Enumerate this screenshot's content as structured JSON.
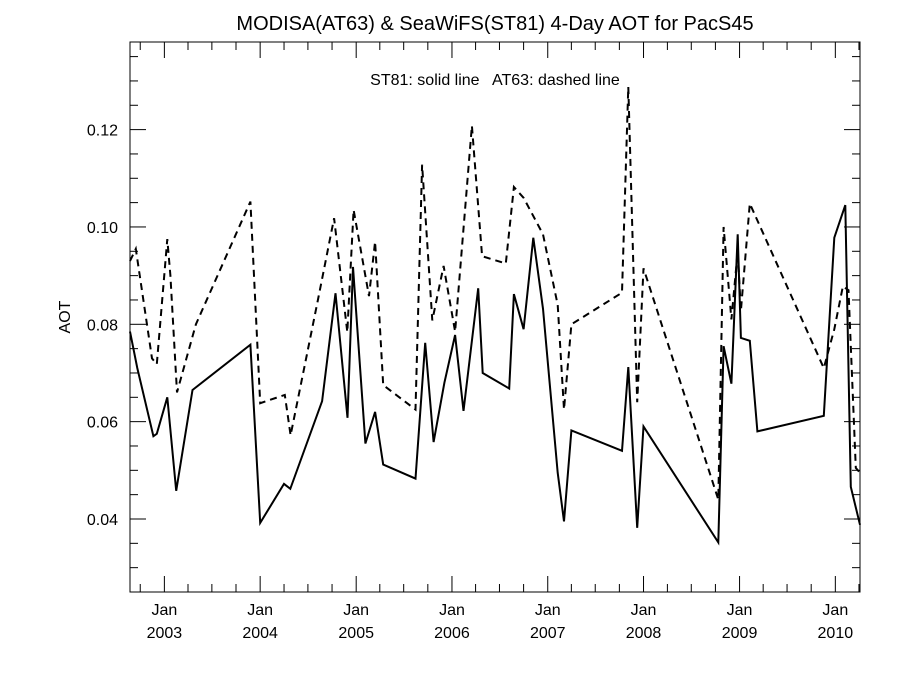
{
  "chart_data": {
    "type": "line",
    "title": "MODISA(AT63) & SeaWiFS(ST81) 4-Day AOT for PacS45",
    "ylabel": "AOT",
    "xlabel": "",
    "annotation": "ST81: solid line   AT63: dashed line",
    "xlim": [
      "2002-08-23",
      "2010-04-05"
    ],
    "ylim": [
      0.025,
      0.138
    ],
    "y_ticks": [
      0.04,
      0.06,
      0.08,
      0.1,
      0.12
    ],
    "y_tick_labels": [
      "0.04",
      "0.06",
      "0.08",
      "0.10",
      "0.12"
    ],
    "x_ticks": [
      {
        "date": "2003-01-01",
        "month": "Jan",
        "year": "2003"
      },
      {
        "date": "2004-01-01",
        "month": "Jan",
        "year": "2004"
      },
      {
        "date": "2005-01-01",
        "month": "Jan",
        "year": "2005"
      },
      {
        "date": "2006-01-01",
        "month": "Jan",
        "year": "2006"
      },
      {
        "date": "2007-01-01",
        "month": "Jan",
        "year": "2007"
      },
      {
        "date": "2008-01-01",
        "month": "Jan",
        "year": "2008"
      },
      {
        "date": "2009-01-01",
        "month": "Jan",
        "year": "2009"
      },
      {
        "date": "2010-01-01",
        "month": "Jan",
        "year": "2010"
      }
    ],
    "series": [
      {
        "name": "ST81",
        "style": "solid",
        "points": [
          [
            "2002-08-23",
            0.0785
          ],
          [
            "2002-09-20",
            0.071
          ],
          [
            "2002-11-20",
            0.057
          ],
          [
            "2002-12-03",
            0.0575
          ],
          [
            "2003-01-12",
            0.065
          ],
          [
            "2003-02-15",
            0.0458
          ],
          [
            "2003-04-18",
            0.0665
          ],
          [
            "2003-11-25",
            0.0758
          ],
          [
            "2004-01-01",
            0.0392
          ],
          [
            "2004-04-01",
            0.0472
          ],
          [
            "2004-04-25",
            0.0462
          ],
          [
            "2004-08-24",
            0.0642
          ],
          [
            "2004-10-14",
            0.0864
          ],
          [
            "2004-11-29",
            0.0608
          ],
          [
            "2004-12-20",
            0.0918
          ],
          [
            "2005-02-05",
            0.0555
          ],
          [
            "2005-03-14",
            0.062
          ],
          [
            "2005-04-14",
            0.0512
          ],
          [
            "2005-08-15",
            0.0483
          ],
          [
            "2005-09-21",
            0.0762
          ],
          [
            "2005-10-23",
            0.0558
          ],
          [
            "2005-12-03",
            0.068
          ],
          [
            "2006-01-13",
            0.0778
          ],
          [
            "2006-02-14",
            0.0622
          ],
          [
            "2006-04-11",
            0.0874
          ],
          [
            "2006-04-28",
            0.07
          ],
          [
            "2006-08-07",
            0.0668
          ],
          [
            "2006-08-25",
            0.0862
          ],
          [
            "2006-10-01",
            0.079
          ],
          [
            "2006-11-07",
            0.0978
          ],
          [
            "2006-12-14",
            0.0832
          ],
          [
            "2007-02-08",
            0.0495
          ],
          [
            "2007-03-04",
            0.0395
          ],
          [
            "2007-04-01",
            0.0582
          ],
          [
            "2007-10-11",
            0.054
          ],
          [
            "2007-11-04",
            0.0712
          ],
          [
            "2007-12-08",
            0.0382
          ],
          [
            "2008-01-01",
            0.059
          ],
          [
            "2008-10-12",
            0.0352
          ],
          [
            "2008-11-01",
            0.0755
          ],
          [
            "2008-12-01",
            0.0678
          ],
          [
            "2008-12-25",
            0.0985
          ],
          [
            "2009-01-06",
            0.0772
          ],
          [
            "2009-02-09",
            0.0766
          ],
          [
            "2009-03-10",
            0.058
          ],
          [
            "2009-11-18",
            0.0612
          ],
          [
            "2009-12-28",
            0.0978
          ],
          [
            "2010-02-08",
            0.1045
          ],
          [
            "2010-03-01",
            0.0466
          ],
          [
            "2010-04-05",
            0.0388
          ]
        ]
      },
      {
        "name": "AT63",
        "style": "dashed",
        "points": [
          [
            "2002-08-23",
            0.093
          ],
          [
            "2002-09-14",
            0.0955
          ],
          [
            "2002-11-15",
            0.073
          ],
          [
            "2002-12-03",
            0.0718
          ],
          [
            "2003-01-12",
            0.0975
          ],
          [
            "2003-01-24",
            0.09
          ],
          [
            "2003-02-18",
            0.066
          ],
          [
            "2003-05-01",
            0.08
          ],
          [
            "2003-11-25",
            0.1052
          ],
          [
            "2004-01-01",
            0.0638
          ],
          [
            "2004-04-04",
            0.0655
          ],
          [
            "2004-04-26",
            0.0572
          ],
          [
            "2004-08-08",
            0.085
          ],
          [
            "2004-10-09",
            0.1018
          ],
          [
            "2004-11-28",
            0.0784
          ],
          [
            "2004-12-22",
            0.1035
          ],
          [
            "2005-02-19",
            0.0858
          ],
          [
            "2005-03-14",
            0.097
          ],
          [
            "2005-04-14",
            0.0675
          ],
          [
            "2005-08-15",
            0.0625
          ],
          [
            "2005-09-09",
            0.1128
          ],
          [
            "2005-10-18",
            0.0808
          ],
          [
            "2005-11-30",
            0.092
          ],
          [
            "2006-01-13",
            0.0785
          ],
          [
            "2006-03-18",
            0.1208
          ],
          [
            "2006-04-26",
            0.094
          ],
          [
            "2006-07-25",
            0.0925
          ],
          [
            "2006-08-25",
            0.1082
          ],
          [
            "2006-10-01",
            0.106
          ],
          [
            "2006-12-14",
            0.0985
          ],
          [
            "2007-02-08",
            0.084
          ],
          [
            "2007-03-04",
            0.0625
          ],
          [
            "2007-04-01",
            0.08
          ],
          [
            "2007-10-11",
            0.0865
          ],
          [
            "2007-11-04",
            0.1288
          ],
          [
            "2007-12-08",
            0.064
          ],
          [
            "2008-01-01",
            0.0915
          ],
          [
            "2008-10-12",
            0.044
          ],
          [
            "2008-11-01",
            0.1
          ],
          [
            "2008-12-01",
            0.081
          ],
          [
            "2008-12-25",
            0.095
          ],
          [
            "2009-01-06",
            0.0828
          ],
          [
            "2009-02-09",
            0.1048
          ],
          [
            "2009-11-18",
            0.071
          ],
          [
            "2009-12-28",
            0.079
          ],
          [
            "2010-01-30",
            0.0878
          ],
          [
            "2010-02-20",
            0.087
          ],
          [
            "2010-03-20",
            0.0505
          ],
          [
            "2010-04-05",
            0.0495
          ]
        ]
      }
    ]
  }
}
